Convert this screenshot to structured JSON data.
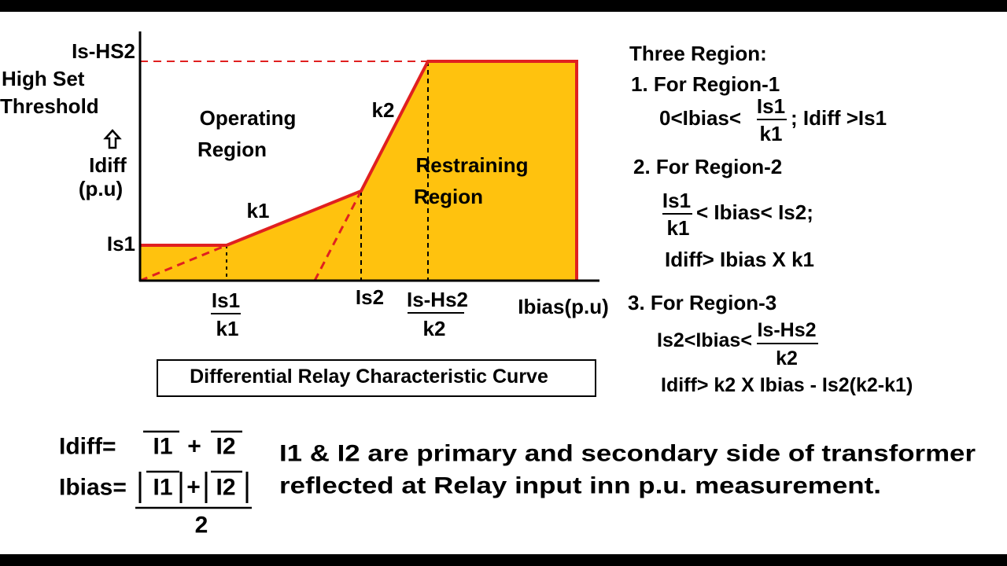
{
  "graph": {
    "y_labels": {
      "is_hs2": "Is-HS2",
      "high_set": "High Set",
      "threshold": "Threshold",
      "idiff": "Idiff",
      "pu": "(p.u)",
      "is1": "Is1"
    },
    "regions": {
      "operating": [
        "Operating",
        "Region"
      ],
      "restraining": [
        "Restraining",
        "Region"
      ]
    },
    "slopes": {
      "k1": "k1",
      "k2": "k2"
    },
    "x_labels": {
      "is1_k1": {
        "num": "Is1",
        "den": "k1"
      },
      "is2": "Is2",
      "ishs2_k2": {
        "num": "Is-Hs2",
        "den": "k2"
      },
      "ibias": "Ibias(p.u)"
    },
    "caption": "Differential Relay Characteristic Curve"
  },
  "regions_panel": {
    "title": "Three Region:",
    "region1": {
      "heading": "1. For Region-1",
      "cond_left": "0<Ibias<",
      "num": "Is1",
      "den": "k1",
      "cond_right": "; Idiff >Is1"
    },
    "region2": {
      "heading": "2. For Region-2",
      "num": "Is1",
      "den": "k1",
      "cond_right": "< Ibias< Is2;",
      "cond2": "Idiff> Ibias X k1"
    },
    "region3": {
      "heading": "3. For Region-3",
      "cond_left": "Is2<Ibias<",
      "num": "Is-Hs2",
      "den": "k2",
      "cond2": "Idiff> k2 X Ibias - Is2(k2-k1)"
    }
  },
  "formulas": {
    "idiff": {
      "lhs": "Idiff=",
      "a": "I1",
      "op": "+",
      "b": "I2"
    },
    "ibias": {
      "lhs": "Ibias=",
      "a": "I1",
      "op": "+",
      "b": "I2",
      "den": "2"
    }
  },
  "note": [
    "I1 & I2 are primary and secondary side of transformer",
    "reflected at Relay input inn p.u. measurement."
  ]
}
